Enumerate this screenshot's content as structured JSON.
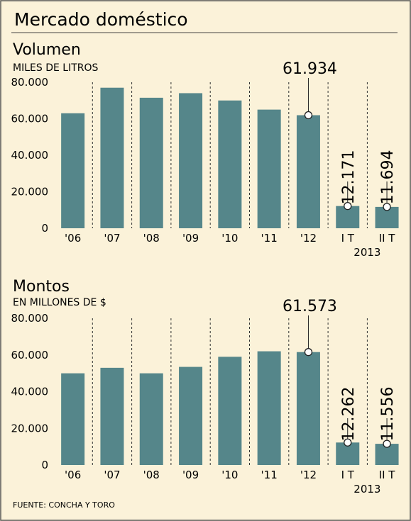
{
  "title": "Mercado doméstico",
  "source": "FUENTE: CONCHA Y TORO",
  "colors": {
    "bar": "#55868a",
    "background": "#fbf2d9",
    "frame": "#555555"
  },
  "chart_data": [
    {
      "type": "bar",
      "title": "Volumen",
      "ylabel": "MILES DE LITROS",
      "categories": [
        "'06",
        "'07",
        "'08",
        "'09",
        "'10",
        "'11",
        "'12",
        "I T",
        "II T"
      ],
      "year_label": "2013",
      "values": [
        63000,
        77000,
        71500,
        74000,
        70000,
        65000,
        61934,
        12171,
        11694
      ],
      "yticks": [
        "0",
        "20.000",
        "40.000",
        "60.000",
        "80.000"
      ],
      "ylim": [
        0,
        80000
      ],
      "callouts": [
        {
          "index": 6,
          "label": "61.934"
        },
        {
          "index": 7,
          "label": "12.171"
        },
        {
          "index": 8,
          "label": "11.694"
        }
      ]
    },
    {
      "type": "bar",
      "title": "Montos",
      "ylabel": "EN MILLONES DE $",
      "categories": [
        "'06",
        "'07",
        "'08",
        "'09",
        "'10",
        "'11",
        "'12",
        "I T",
        "II T"
      ],
      "year_label": "2013",
      "values": [
        50000,
        53000,
        50000,
        53500,
        59000,
        62000,
        61573,
        12262,
        11556
      ],
      "yticks": [
        "0",
        "20.000",
        "40.000",
        "60.000",
        "80.000"
      ],
      "ylim": [
        0,
        80000
      ],
      "callouts": [
        {
          "index": 6,
          "label": "61.573"
        },
        {
          "index": 7,
          "label": "12.262"
        },
        {
          "index": 8,
          "label": "11.556"
        }
      ]
    }
  ]
}
